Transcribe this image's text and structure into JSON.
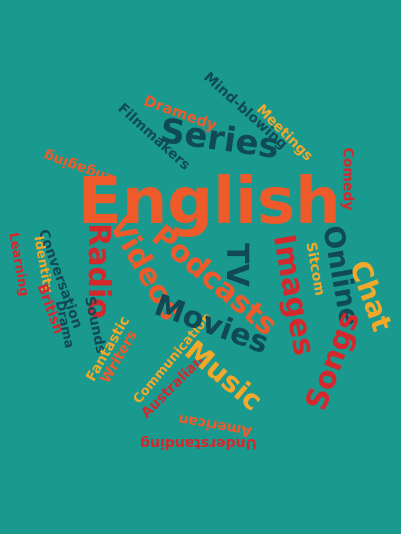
{
  "palette": {
    "background": "#1a9a8f",
    "orange": "#ee5a2a",
    "red": "#d4282c",
    "dark_teal": "#0f4a55",
    "yellow_orange": "#f2a82a"
  },
  "words": {
    "english": "English",
    "series": "Series",
    "podcasts": "Podcasts",
    "videos": "Videos",
    "radio": "Radio",
    "tv": "TV",
    "images": "Images",
    "online": "Online",
    "chat": "Chat",
    "songs": "Songs",
    "movies": "Movies",
    "music": "Music",
    "sitcom": "Sitcom",
    "comedy": "Comedy",
    "meetings": "Meetings",
    "mind_blowing": "Mind-blowing",
    "dramedy": "Dramedy",
    "filmmakers": "Filmmakers",
    "engaging": "Engaging",
    "conversation": "Conversation",
    "identity": "Identity",
    "learning": "Learning",
    "british": "British",
    "drama": "Drama",
    "sounds": "Sounds",
    "writers": "Writers",
    "fantastic": "Fantastic",
    "communication": "Communication",
    "australian": "Australian",
    "american": "American",
    "understanding": "Understanding"
  }
}
